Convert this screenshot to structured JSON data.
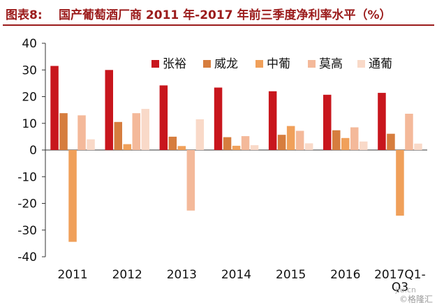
{
  "header": {
    "figure_label": "图表8:",
    "title": "国产葡萄酒厂商 2011 年-2017 年前三季度净利率水平（%）"
  },
  "chart_data": {
    "type": "bar",
    "title": "国产葡萄酒厂商 2011 年-2017 年前三季度净利率水平（%）",
    "xlabel": "",
    "ylabel": "",
    "categories": [
      "2011",
      "2012",
      "2013",
      "2014",
      "2015",
      "2016",
      "2017Q1-Q3"
    ],
    "category_labels": [
      [
        "2011"
      ],
      [
        "2012"
      ],
      [
        "2013"
      ],
      [
        "2014"
      ],
      [
        "2015"
      ],
      [
        "2016"
      ],
      [
        "2017Q1-",
        "Q3"
      ]
    ],
    "ylim": [
      -40,
      40
    ],
    "yticks": [
      40,
      30,
      20,
      10,
      0,
      -10,
      -20,
      -30,
      -40
    ],
    "grid": false,
    "legend_position": "top-right",
    "series": [
      {
        "name": "张裕",
        "color": "#c8161d",
        "values": [
          31.5,
          30.0,
          24.2,
          23.4,
          22.0,
          20.7,
          21.4
        ]
      },
      {
        "name": "威龙",
        "color": "#d67d3e",
        "values": [
          13.8,
          10.5,
          5.0,
          4.8,
          5.7,
          7.4,
          6.1
        ]
      },
      {
        "name": "中葡",
        "color": "#f0a05a",
        "values": [
          -34.4,
          2.2,
          1.5,
          1.6,
          9.0,
          4.5,
          -24.6
        ]
      },
      {
        "name": "莫高",
        "color": "#f4b99a",
        "values": [
          13.0,
          13.8,
          -22.7,
          5.2,
          7.2,
          8.5,
          13.6
        ]
      },
      {
        "name": "通葡",
        "color": "#f9d9c8",
        "values": [
          4.0,
          15.4,
          11.5,
          1.8,
          2.5,
          3.2,
          2.4
        ]
      }
    ]
  },
  "watermark": {
    "site": "jiu.cn",
    "source": "©格隆汇"
  }
}
